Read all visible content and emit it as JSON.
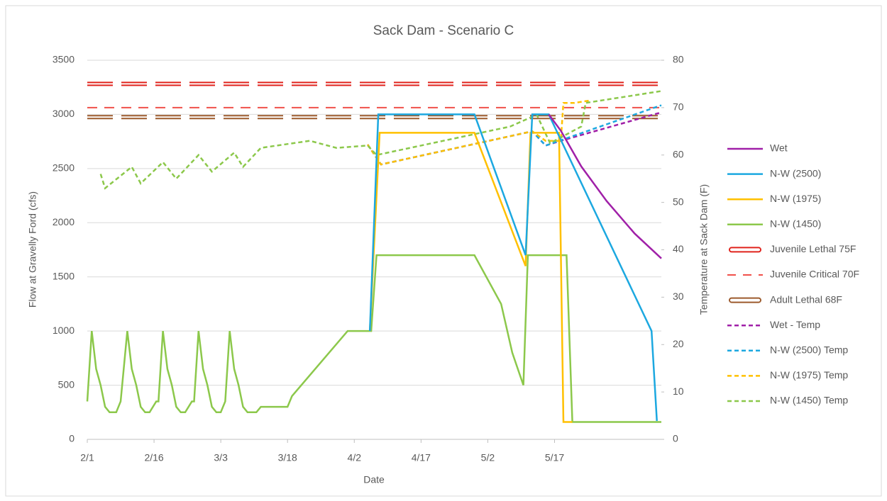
{
  "chart_data": {
    "type": "line",
    "title": "Sack Dam - Scenario C",
    "xlabel": "Date",
    "ylabel": "Flow at Gravelly Ford (cfs)",
    "y2label": "Temperature at Sack Dam (F)",
    "xlim": [
      0,
      129
    ],
    "xticks": [
      {
        "value": 0,
        "label": "2/1"
      },
      {
        "value": 15,
        "label": "2/16"
      },
      {
        "value": 30,
        "label": "3/3"
      },
      {
        "value": 45,
        "label": "3/18"
      },
      {
        "value": 60,
        "label": "4/2"
      },
      {
        "value": 75,
        "label": "4/17"
      },
      {
        "value": 90,
        "label": "5/2"
      },
      {
        "value": 105,
        "label": "5/17"
      }
    ],
    "ylim": [
      0,
      3500
    ],
    "yticks": [
      0,
      500,
      1000,
      1500,
      2000,
      2500,
      3000,
      3500
    ],
    "y2lim": [
      0,
      80
    ],
    "y2ticks": [
      0,
      10,
      20,
      30,
      40,
      50,
      60,
      70,
      80
    ],
    "grid": true,
    "legend": "right",
    "series": [
      {
        "name": "Wet",
        "color": "#a020a8",
        "style": "solid",
        "x": [
          103.7,
          106.4,
          111,
          116.7,
          123,
          129
        ],
        "values": [
          3000,
          2850,
          2520,
          2200,
          1900,
          1670
        ]
      },
      {
        "name": "N-W (2500)",
        "color": "#1ca8e0",
        "style": "solid",
        "x": [
          63.5,
          65.4,
          87,
          98.5,
          100,
          103.7,
          126.8,
          128
        ],
        "values": [
          1000,
          3000,
          3000,
          1700,
          3000,
          3000,
          1000,
          170
        ]
      },
      {
        "name": "N-W (1975)",
        "color": "#ffc000",
        "style": "solid",
        "x": [
          63.5,
          65.7,
          87,
          98.5,
          99.6,
          106,
          107,
          109
        ],
        "values": [
          1000,
          2830,
          2830,
          1600,
          2830,
          2830,
          160,
          160
        ]
      },
      {
        "name": "N-W (1450)",
        "color": "#8cc84b",
        "style": "solid",
        "x": [
          0,
          1,
          2,
          3,
          4,
          5,
          6.5,
          7.5,
          9,
          10,
          11,
          12,
          13,
          14,
          15.5,
          16,
          17,
          18,
          19,
          20,
          21,
          22,
          23.5,
          24,
          25,
          26,
          27,
          28,
          29,
          30,
          31,
          32,
          33,
          34,
          35,
          36,
          38,
          39,
          45,
          46,
          58.5,
          63.8,
          65,
          87,
          93,
          95.5,
          98,
          99,
          107.7,
          109,
          129
        ],
        "values": [
          350,
          1000,
          650,
          500,
          300,
          250,
          250,
          350,
          1000,
          650,
          500,
          300,
          250,
          250,
          350,
          350,
          1000,
          650,
          500,
          300,
          250,
          250,
          350,
          350,
          1000,
          650,
          500,
          300,
          250,
          250,
          350,
          1000,
          650,
          500,
          300,
          250,
          250,
          300,
          300,
          400,
          1000,
          1000,
          1700,
          1700,
          1250,
          800,
          500,
          1700,
          1700,
          160,
          160
        ]
      },
      {
        "name": "Juvenile Lethal 75F",
        "color": "#e0231c",
        "style": "double",
        "axis": "y2",
        "x": [
          0,
          129
        ],
        "values": [
          75,
          75
        ]
      },
      {
        "name": "Juvenile Critical 70F",
        "color": "#f0504a",
        "style": "longdash",
        "axis": "y2",
        "x": [
          0,
          129
        ],
        "values": [
          70,
          70
        ]
      },
      {
        "name": "Adult Lethal 68F",
        "color": "#9c5a2c",
        "style": "double",
        "axis": "y2",
        "x": [
          0,
          129
        ],
        "values": [
          68,
          68
        ]
      },
      {
        "name": "Wet - Temp",
        "color": "#a020a8",
        "style": "dashed",
        "axis": "y2",
        "x": [
          63,
          66,
          100,
          103,
          106.4,
          129
        ],
        "values": [
          62.2,
          58,
          65,
          62,
          63,
          69
        ]
      },
      {
        "name": "N-W (2500) Temp",
        "color": "#1ca8e0",
        "style": "dashed",
        "axis": "y2",
        "x": [
          63,
          66,
          100,
          103,
          129
        ],
        "values": [
          62.2,
          58,
          65,
          62,
          70.5
        ]
      },
      {
        "name": "N-W (1975) Temp",
        "color": "#ffc000",
        "style": "dashed",
        "axis": "y2",
        "x": [
          63,
          66,
          100,
          103,
          106.4,
          107,
          109.5,
          113
        ],
        "values": [
          62.2,
          58,
          65,
          63,
          63,
          71,
          71,
          71.5
        ]
      },
      {
        "name": "N-W (1450) Temp",
        "color": "#8cc84b",
        "style": "dashed",
        "axis": "y2",
        "x": [
          3,
          4,
          10,
          12,
          17,
          20,
          25,
          28,
          33,
          35,
          39,
          50,
          56,
          63,
          65,
          80,
          95,
          101,
          104,
          111,
          112,
          129
        ],
        "values": [
          56,
          53,
          57.5,
          54,
          58.5,
          55,
          60,
          56.5,
          60.5,
          57.5,
          61.5,
          63,
          61.5,
          62,
          60,
          63,
          66,
          68.5,
          62.5,
          66,
          71,
          73.5
        ]
      }
    ]
  }
}
